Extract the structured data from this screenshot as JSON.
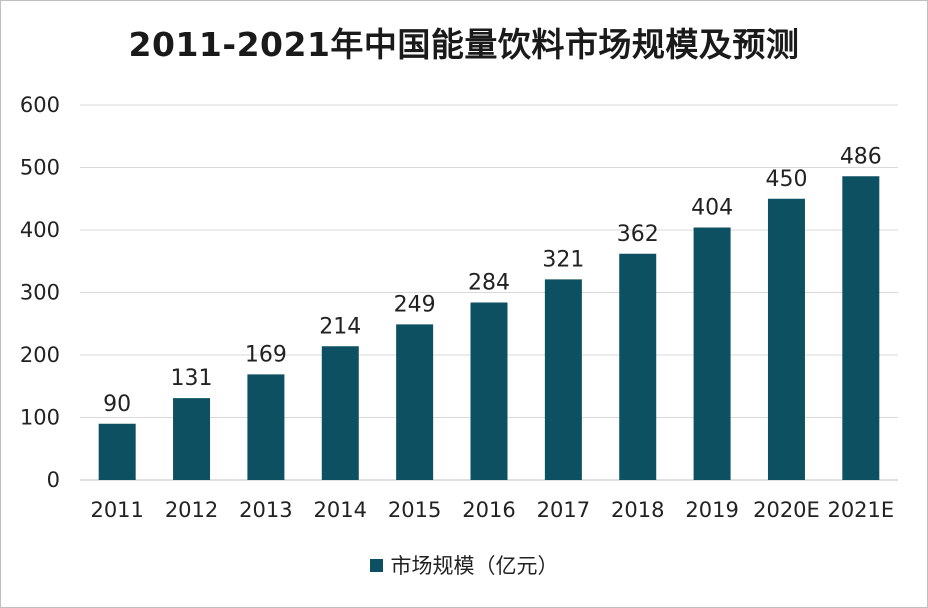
{
  "chart_data": {
    "type": "bar",
    "title": "2011-2021年中国能量饮料市场规模及预测",
    "categories": [
      "2011",
      "2012",
      "2013",
      "2014",
      "2015",
      "2016",
      "2017",
      "2018",
      "2019",
      "2020E",
      "2021E"
    ],
    "series": [
      {
        "name": "市场规模（亿元）",
        "values": [
          90,
          131,
          169,
          214,
          249,
          284,
          321,
          362,
          404,
          450,
          486
        ]
      }
    ],
    "xlabel": "",
    "ylabel": "",
    "ylim": [
      0,
      600
    ],
    "yticks": [
      "0",
      "100",
      "200",
      "300",
      "400",
      "500",
      "600"
    ],
    "grid": true,
    "legend_position": "bottom",
    "colors": {
      "bar": "#0d5062",
      "grid": "#d9d9d9"
    }
  }
}
